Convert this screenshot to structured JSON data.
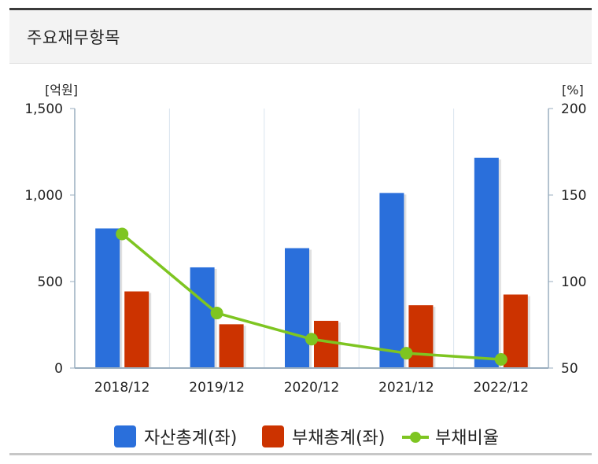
{
  "panel": {
    "title": "주요재무항목"
  },
  "colors": {
    "assets": "#2a6fdb",
    "liabilities": "#cc3300",
    "ratio": "#7ec521",
    "axis": "#9aaebf",
    "grid": "#d9e3ee"
  },
  "chart_data": {
    "type": "bar",
    "categories": [
      "2018/12",
      "2019/12",
      "2020/12",
      "2021/12",
      "2022/12"
    ],
    "left_axis": {
      "unit": "[억원]",
      "ylim": [
        0,
        1500
      ],
      "ticks": [
        0,
        500,
        1000,
        1500
      ],
      "tick_labels": [
        "0",
        "500",
        "1,000",
        "1,500"
      ]
    },
    "right_axis": {
      "unit": "[%]",
      "ylim": [
        50,
        200
      ],
      "ticks": [
        50,
        100,
        150,
        200
      ],
      "tick_labels": [
        "50",
        "100",
        "150",
        "200"
      ]
    },
    "series": [
      {
        "name": "자산총계(좌)",
        "type": "bar",
        "axis": "left",
        "values": [
          807,
          582,
          693,
          1012,
          1215
        ]
      },
      {
        "name": "부채총계(좌)",
        "type": "bar",
        "axis": "left",
        "values": [
          443,
          253,
          273,
          363,
          425
        ]
      },
      {
        "name": "부채비율",
        "type": "line",
        "axis": "right",
        "values": [
          127.5,
          81.8,
          66.7,
          58.6,
          55.0
        ]
      }
    ],
    "grid": true,
    "legend": "bottom"
  }
}
